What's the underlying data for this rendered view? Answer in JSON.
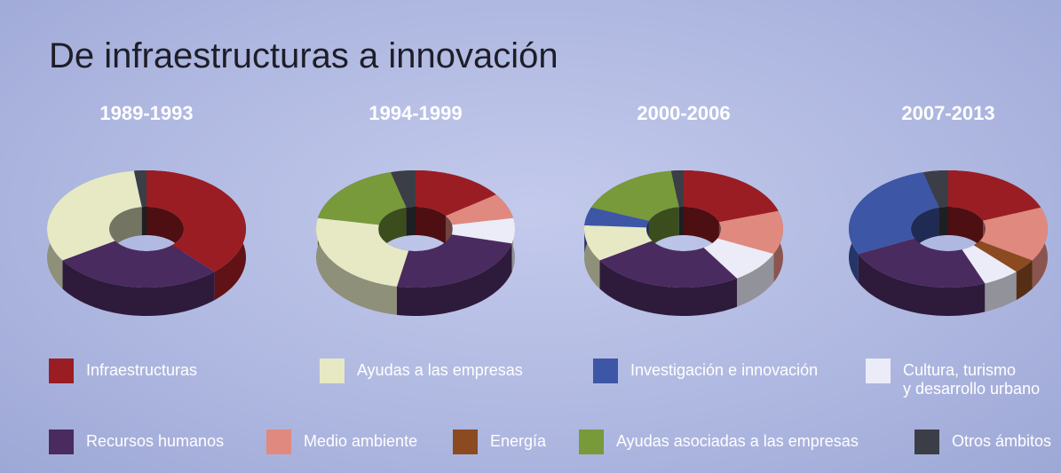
{
  "title": "De infraestructuras a innovación",
  "legend": {
    "categories": [
      "Infraestructuras",
      "Ayudas a las empresas",
      "Investigación e innovación",
      "Cultura, turismo\ny desarrollo urbano",
      "Recursos humanos",
      "Medio ambiente",
      "Energía",
      "Ayudas asociadas a las empresas",
      "Otros ámbitos"
    ],
    "colors": [
      "#9b1d24",
      "#e6e9c4",
      "#3d56a6",
      "#ececf8",
      "#4a2b5f",
      "#e0897f",
      "#8b4a20",
      "#789a3a",
      "#3b3e46"
    ]
  },
  "chart_data": [
    {
      "type": "pie",
      "title": "1989-1993",
      "values": [
        38,
        32,
        0,
        0,
        28,
        0,
        0,
        0,
        2
      ]
    },
    {
      "type": "pie",
      "title": "1994-1999",
      "values": [
        15,
        25,
        0,
        7,
        24,
        7,
        0,
        18,
        4
      ]
    },
    {
      "type": "pie",
      "title": "2000-2006",
      "values": [
        20,
        10,
        5,
        9,
        25,
        12,
        0,
        17,
        2
      ]
    },
    {
      "type": "pie",
      "title": "2007-2013",
      "values": [
        19,
        0,
        28,
        6,
        24,
        15,
        4,
        0,
        4
      ]
    }
  ]
}
